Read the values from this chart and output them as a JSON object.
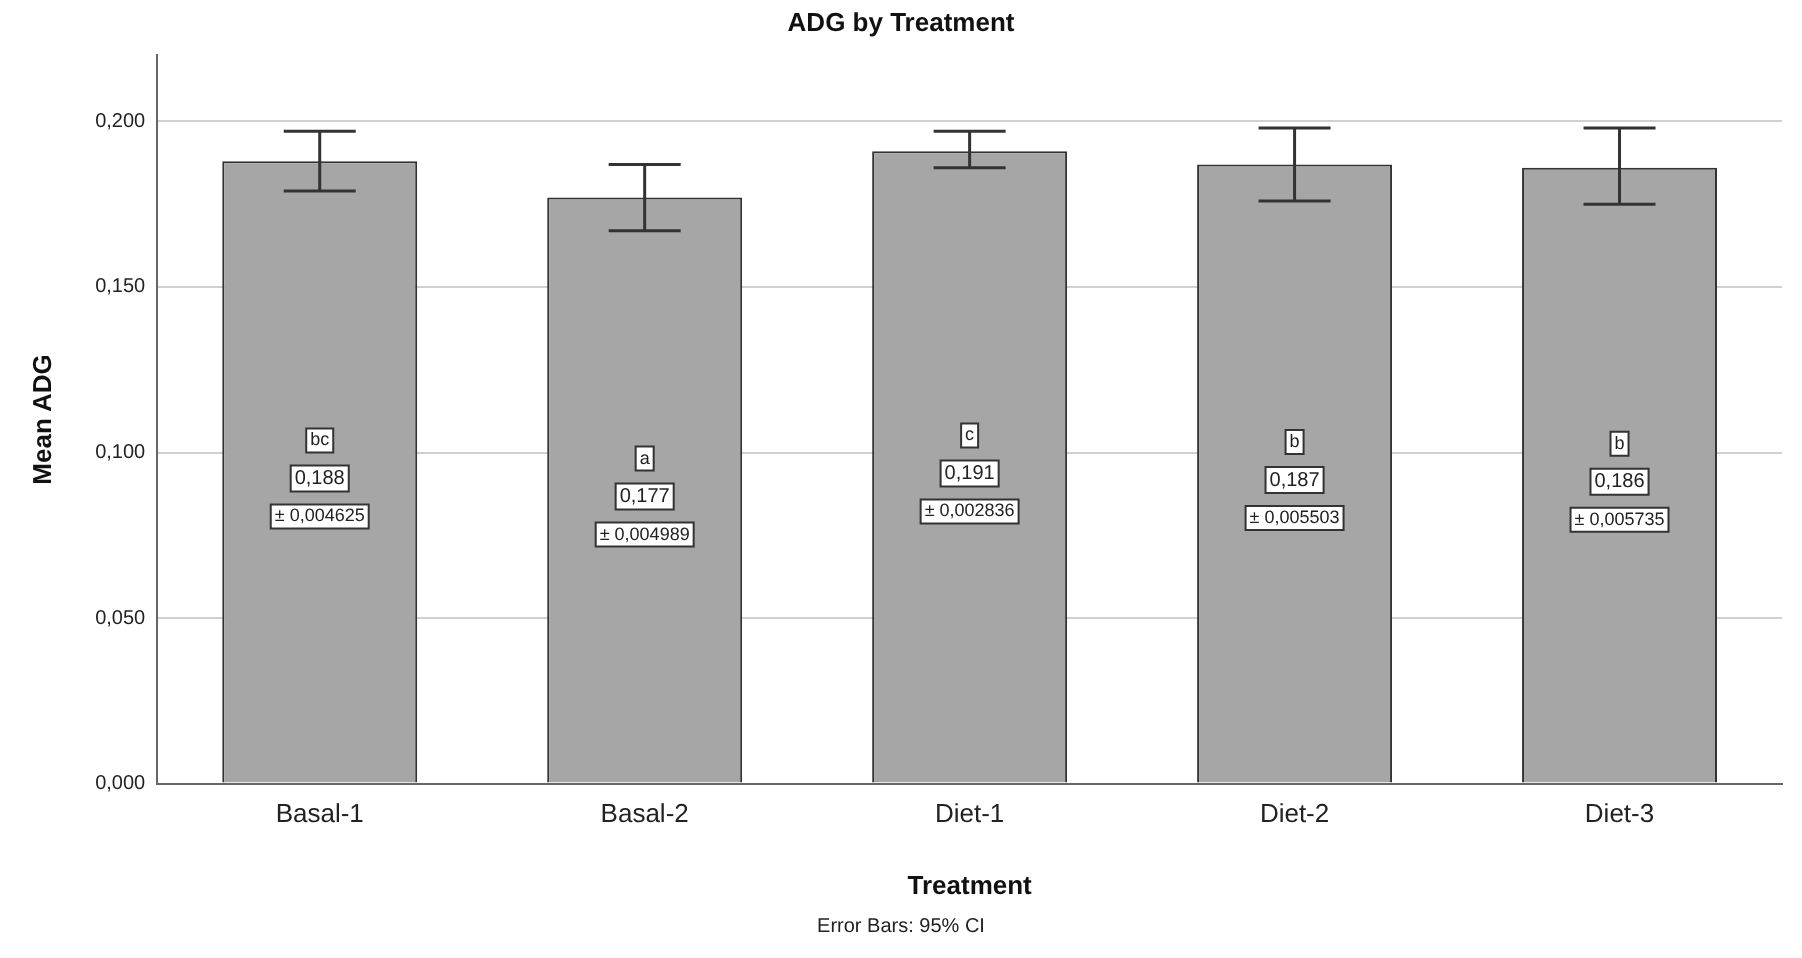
{
  "chart_data": {
    "type": "bar",
    "title": "ADG by Treatment",
    "xlabel": "Treatment",
    "ylabel": "Mean ADG",
    "categories": [
      "Basal-1",
      "Basal-2",
      "Diet-1",
      "Diet-2",
      "Diet-3"
    ],
    "values": [
      0.188,
      0.177,
      0.191,
      0.187,
      0.186
    ],
    "value_labels": [
      "0,188",
      "0,177",
      "0,191",
      "0,187",
      "0,186"
    ],
    "errors": [
      [
        0.179,
        0.197
      ],
      [
        0.167,
        0.187
      ],
      [
        0.186,
        0.197
      ],
      [
        0.176,
        0.198
      ],
      [
        0.175,
        0.198
      ]
    ],
    "color": "#a6a6a6",
    "ylim": [
      0,
      0.22
    ],
    "yticks": [
      {
        "value": 0,
        "label": "0,000"
      },
      {
        "value": 0.05,
        "label": "0,050"
      },
      {
        "value": 0.1,
        "label": "0,100"
      },
      {
        "value": 0.15,
        "label": "0,150"
      },
      {
        "value": 0.2,
        "label": "0,200"
      }
    ],
    "grid": "y",
    "legend": false,
    "annotations": [
      "bc",
      "a",
      "c",
      "b",
      "b",
      "± 0,004625",
      "± 0,004989",
      "± 0,002836",
      "± 0,005503",
      "± 0,005735",
      "Error Bars: 95% CI"
    ]
  }
}
